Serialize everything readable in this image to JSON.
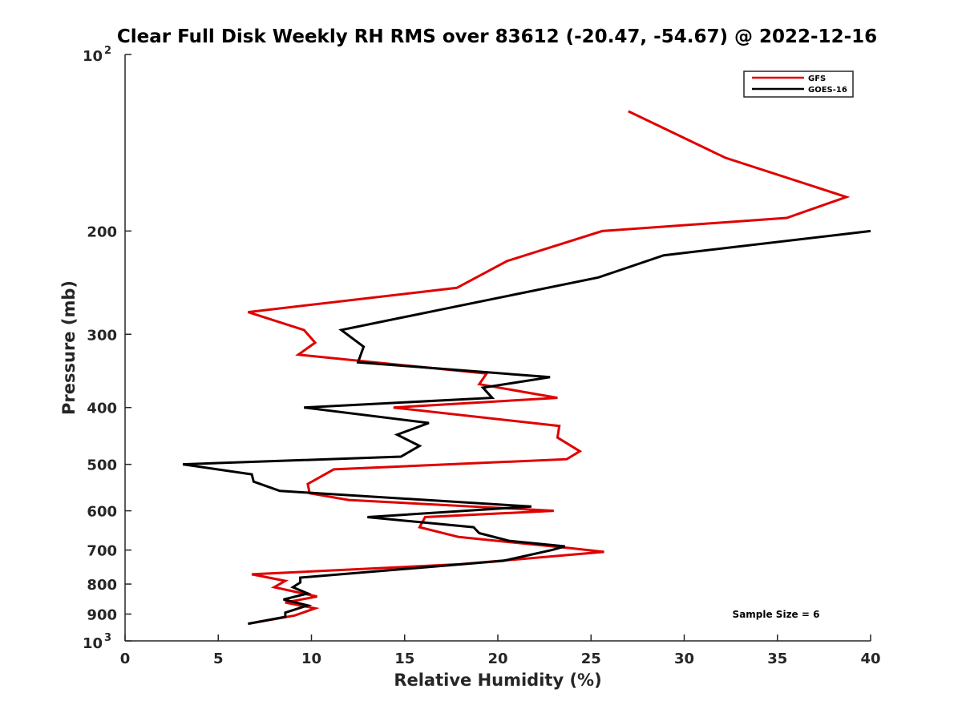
{
  "chart_data": {
    "type": "line",
    "title": "Clear Full Disk Weekly RH RMS over 83612 (-20.47, -54.67) @ 2022-12-16",
    "xlabel": "Relative Humidity (%)",
    "ylabel": "Pressure (mb)",
    "xlim": [
      0,
      40
    ],
    "ylim": [
      100,
      1000
    ],
    "y_scale": "log",
    "y_reversed": true,
    "x_ticks": [
      0,
      5,
      10,
      15,
      20,
      25,
      30,
      35,
      40
    ],
    "x_tick_labels": [
      "0",
      "5",
      "10",
      "15",
      "20",
      "25",
      "30",
      "35",
      "40"
    ],
    "y_ticks": [
      200,
      300,
      400,
      500,
      600,
      700,
      800,
      900
    ],
    "y_tick_labels": [
      "200",
      "300",
      "400",
      "500",
      "600",
      "700",
      "800",
      "900"
    ],
    "y_limit_labels": {
      "top_base": "10",
      "top_exp": "2",
      "bottom_base": "10",
      "bottom_exp": "3"
    },
    "legend": {
      "position": "top-right",
      "entries": [
        "GFS",
        "GOES-16"
      ]
    },
    "annotation": "Sample Size = 6",
    "series": [
      {
        "name": "GFS",
        "color": "#e00000",
        "points": [
          [
            27.0,
            125
          ],
          [
            32.2,
            150
          ],
          [
            38.7,
            175
          ],
          [
            35.5,
            190
          ],
          [
            25.6,
            200
          ],
          [
            20.5,
            225
          ],
          [
            17.8,
            250
          ],
          [
            6.6,
            275
          ],
          [
            9.6,
            295
          ],
          [
            10.2,
            310
          ],
          [
            9.3,
            325
          ],
          [
            19.4,
            350
          ],
          [
            19.0,
            365
          ],
          [
            23.2,
            385
          ],
          [
            14.4,
            400
          ],
          [
            23.3,
            430
          ],
          [
            23.2,
            450
          ],
          [
            24.4,
            475
          ],
          [
            23.7,
            490
          ],
          [
            11.2,
            510
          ],
          [
            9.8,
            540
          ],
          [
            9.9,
            560
          ],
          [
            12.0,
            575
          ],
          [
            23.0,
            600
          ],
          [
            16.1,
            615
          ],
          [
            15.8,
            640
          ],
          [
            17.9,
            665
          ],
          [
            23.9,
            695
          ],
          [
            25.7,
            705
          ],
          [
            18.0,
            740
          ],
          [
            6.8,
            770
          ],
          [
            8.6,
            790
          ],
          [
            8.0,
            810
          ],
          [
            10.3,
            840
          ],
          [
            8.6,
            860
          ],
          [
            10.2,
            880
          ],
          [
            9.1,
            905
          ],
          [
            6.6,
            935
          ]
        ]
      },
      {
        "name": "GOES-16",
        "color": "#000000",
        "points": [
          [
            40.0,
            200
          ],
          [
            28.9,
            220
          ],
          [
            25.4,
            240
          ],
          [
            17.5,
            270
          ],
          [
            11.6,
            295
          ],
          [
            12.8,
            315
          ],
          [
            12.5,
            335
          ],
          [
            22.8,
            355
          ],
          [
            19.2,
            370
          ],
          [
            19.7,
            385
          ],
          [
            9.6,
            400
          ],
          [
            16.3,
            425
          ],
          [
            14.6,
            445
          ],
          [
            15.8,
            465
          ],
          [
            14.8,
            485
          ],
          [
            3.1,
            500
          ],
          [
            6.8,
            520
          ],
          [
            6.9,
            535
          ],
          [
            8.3,
            555
          ],
          [
            21.8,
            590
          ],
          [
            13.0,
            615
          ],
          [
            18.7,
            640
          ],
          [
            19.0,
            655
          ],
          [
            20.6,
            675
          ],
          [
            23.6,
            690
          ],
          [
            22.9,
            700
          ],
          [
            20.3,
            730
          ],
          [
            9.4,
            780
          ],
          [
            9.4,
            795
          ],
          [
            9.0,
            810
          ],
          [
            9.8,
            830
          ],
          [
            8.5,
            850
          ],
          [
            9.8,
            870
          ],
          [
            8.6,
            895
          ],
          [
            8.6,
            910
          ],
          [
            6.6,
            935
          ]
        ]
      }
    ]
  }
}
